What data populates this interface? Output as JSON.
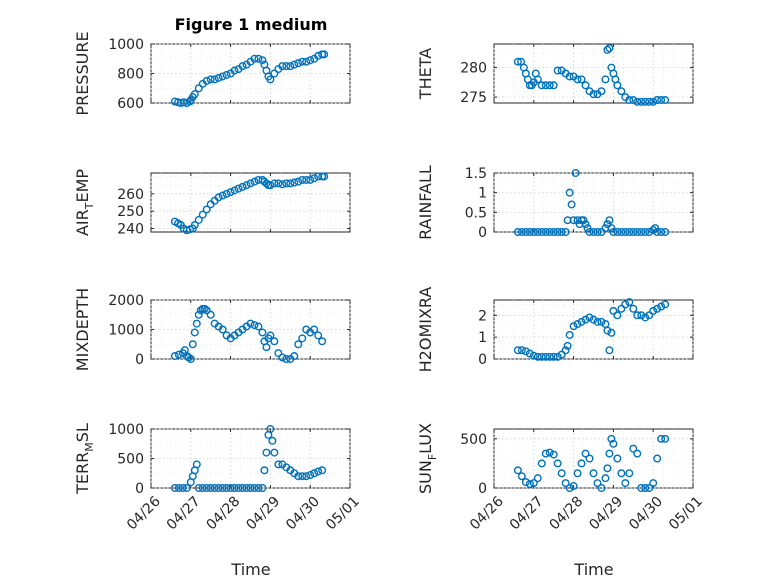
{
  "figure": {
    "title": "Figure 1 medium"
  },
  "colors": {
    "marker": "#0072BD",
    "axis": "#262626"
  },
  "chart_data": [
    {
      "type": "scatter",
      "ylabel": "PRESSURE",
      "ylabel_sub": "",
      "ylabel_tail": "",
      "xlim": [
        0,
        5
      ],
      "ylim": [
        600,
        1000
      ],
      "yticks": [
        600,
        800,
        1000
      ],
      "ytick_labels": [
        "600",
        "800",
        "1000"
      ],
      "x": [
        0.6,
        0.68,
        0.75,
        0.82,
        0.9,
        0.98,
        1.0,
        1.05,
        1.1,
        1.2,
        1.3,
        1.4,
        1.5,
        1.6,
        1.7,
        1.8,
        1.9,
        2.0,
        2.1,
        2.2,
        2.3,
        2.4,
        2.5,
        2.6,
        2.7,
        2.8,
        2.85,
        2.9,
        2.95,
        3.0,
        3.1,
        3.2,
        3.3,
        3.4,
        3.5,
        3.6,
        3.7,
        3.8,
        3.9,
        4.0,
        4.1,
        4.2,
        4.3,
        4.35
      ],
      "y": [
        610,
        605,
        600,
        605,
        600,
        610,
        620,
        640,
        660,
        700,
        730,
        750,
        760,
        760,
        770,
        780,
        790,
        800,
        820,
        830,
        850,
        860,
        880,
        900,
        900,
        890,
        860,
        820,
        780,
        760,
        800,
        830,
        850,
        850,
        850,
        860,
        870,
        880,
        880,
        890,
        900,
        920,
        930,
        930
      ]
    },
    {
      "type": "scatter",
      "ylabel": "THETA",
      "ylabel_sub": "",
      "ylabel_tail": "",
      "xlim": [
        0,
        5
      ],
      "ylim": [
        274,
        284
      ],
      "yticks": [
        275,
        280
      ],
      "ytick_labels": [
        "275",
        "280"
      ],
      "x": [
        0.6,
        0.68,
        0.75,
        0.8,
        0.85,
        0.9,
        0.95,
        1.0,
        1.05,
        1.1,
        1.2,
        1.3,
        1.4,
        1.5,
        1.6,
        1.7,
        1.8,
        1.9,
        2.0,
        2.1,
        2.2,
        2.3,
        2.4,
        2.5,
        2.6,
        2.7,
        2.8,
        2.85,
        2.9,
        2.95,
        3.0,
        3.05,
        3.1,
        3.2,
        3.3,
        3.4,
        3.5,
        3.6,
        3.7,
        3.8,
        3.9,
        4.0,
        4.1,
        4.2,
        4.3
      ],
      "y": [
        281,
        281,
        280,
        279,
        278,
        277,
        277,
        277.5,
        279,
        278,
        277,
        277,
        277,
        277,
        279.5,
        279.5,
        279,
        278.5,
        278.5,
        278,
        278,
        277,
        276,
        275.5,
        275.5,
        276,
        278,
        283,
        283.3,
        280,
        279,
        278,
        277,
        276,
        275,
        274.5,
        274.5,
        274.2,
        274.2,
        274.2,
        274.2,
        274.2,
        274.5,
        274.5,
        274.5
      ]
    },
    {
      "type": "scatter",
      "ylabel": "AIR",
      "ylabel_sub": "T",
      "ylabel_tail": "EMP",
      "xlim": [
        0,
        5
      ],
      "ylim": [
        238,
        272
      ],
      "yticks": [
        240,
        250,
        260
      ],
      "ytick_labels": [
        "240",
        "250",
        "260"
      ],
      "x": [
        0.6,
        0.68,
        0.75,
        0.82,
        0.9,
        0.98,
        1.05,
        1.1,
        1.2,
        1.3,
        1.4,
        1.5,
        1.6,
        1.7,
        1.8,
        1.9,
        2.0,
        2.1,
        2.2,
        2.3,
        2.4,
        2.5,
        2.6,
        2.7,
        2.8,
        2.85,
        2.9,
        2.95,
        3.0,
        3.1,
        3.2,
        3.3,
        3.4,
        3.5,
        3.6,
        3.7,
        3.8,
        3.9,
        4.0,
        4.1,
        4.2,
        4.3,
        4.35
      ],
      "y": [
        244,
        243,
        242,
        240,
        239,
        239.5,
        240,
        242,
        245,
        248,
        251,
        254,
        256,
        258,
        259,
        260,
        261,
        262,
        263,
        264,
        265,
        266,
        267,
        268,
        268,
        267,
        266,
        265,
        265,
        266,
        266,
        265.5,
        266,
        266,
        266.5,
        267,
        268,
        268,
        268,
        269,
        270,
        270,
        270
      ]
    },
    {
      "type": "scatter",
      "ylabel": "RAINFALL",
      "ylabel_sub": "",
      "ylabel_tail": "",
      "xlim": [
        0,
        5
      ],
      "ylim": [
        0,
        1.5
      ],
      "yticks": [
        0,
        0.5,
        1,
        1.5
      ],
      "ytick_labels": [
        "0",
        "0.5",
        "1",
        "1.5"
      ],
      "x": [
        0.6,
        0.7,
        0.8,
        0.9,
        1.0,
        1.1,
        1.2,
        1.3,
        1.4,
        1.5,
        1.6,
        1.7,
        1.8,
        1.85,
        1.9,
        1.95,
        2.0,
        2.05,
        2.1,
        2.15,
        2.2,
        2.25,
        2.3,
        2.35,
        2.4,
        2.5,
        2.6,
        2.7,
        2.8,
        2.85,
        2.9,
        2.95,
        3.0,
        3.1,
        3.2,
        3.3,
        3.4,
        3.5,
        3.6,
        3.7,
        3.8,
        3.9,
        4.0,
        4.05,
        4.1,
        4.2,
        4.3
      ],
      "y": [
        0,
        0,
        0,
        0,
        0,
        0,
        0,
        0,
        0,
        0,
        0,
        0,
        0,
        0.3,
        1.0,
        0.7,
        0.3,
        1.5,
        0.3,
        0.2,
        0.3,
        0.3,
        0.2,
        0.1,
        0,
        0,
        0,
        0,
        0.1,
        0.2,
        0.3,
        0.1,
        0,
        0,
        0,
        0,
        0,
        0,
        0,
        0,
        0,
        0,
        0.05,
        0.1,
        0,
        0,
        0
      ]
    },
    {
      "type": "scatter",
      "ylabel": "MIXDEPTH",
      "ylabel_sub": "",
      "ylabel_tail": "",
      "xlim": [
        0,
        5
      ],
      "ylim": [
        0,
        2000
      ],
      "yticks": [
        0,
        1000,
        2000
      ],
      "ytick_labels": [
        "0",
        "1000",
        "2000"
      ],
      "x": [
        0.6,
        0.7,
        0.8,
        0.85,
        0.9,
        0.95,
        1.0,
        1.05,
        1.1,
        1.15,
        1.2,
        1.25,
        1.3,
        1.35,
        1.4,
        1.5,
        1.6,
        1.7,
        1.8,
        1.9,
        2.0,
        2.1,
        2.2,
        2.3,
        2.4,
        2.5,
        2.6,
        2.7,
        2.8,
        2.85,
        2.9,
        2.95,
        3.0,
        3.1,
        3.2,
        3.3,
        3.4,
        3.5,
        3.6,
        3.7,
        3.8,
        3.9,
        4.0,
        4.1,
        4.2,
        4.3
      ],
      "y": [
        100,
        150,
        200,
        300,
        100,
        50,
        0,
        500,
        900,
        1200,
        1500,
        1650,
        1700,
        1700,
        1650,
        1500,
        1200,
        1100,
        1000,
        800,
        700,
        800,
        900,
        1000,
        1100,
        1200,
        1150,
        1100,
        900,
        600,
        400,
        700,
        800,
        600,
        200,
        50,
        0,
        0,
        100,
        500,
        700,
        1000,
        900,
        1000,
        800,
        600
      ]
    },
    {
      "type": "scatter",
      "ylabel": "H2OMIXRA",
      "ylabel_sub": "",
      "ylabel_tail": "",
      "xlim": [
        0,
        5
      ],
      "ylim": [
        0,
        2.7
      ],
      "yticks": [
        0,
        1,
        2
      ],
      "ytick_labels": [
        "0",
        "1",
        "2"
      ],
      "x": [
        0.6,
        0.7,
        0.8,
        0.9,
        1.0,
        1.1,
        1.2,
        1.3,
        1.4,
        1.5,
        1.6,
        1.7,
        1.8,
        1.85,
        1.9,
        2.0,
        2.1,
        2.2,
        2.3,
        2.4,
        2.5,
        2.6,
        2.7,
        2.8,
        2.85,
        2.9,
        2.95,
        3.0,
        3.1,
        3.2,
        3.3,
        3.4,
        3.5,
        3.6,
        3.7,
        3.8,
        3.9,
        4.0,
        4.1,
        4.2,
        4.3
      ],
      "y": [
        0.4,
        0.4,
        0.35,
        0.25,
        0.15,
        0.1,
        0.1,
        0.1,
        0.1,
        0.1,
        0.1,
        0.2,
        0.4,
        0.6,
        1.1,
        1.5,
        1.6,
        1.7,
        1.8,
        1.9,
        1.8,
        1.7,
        1.7,
        1.6,
        1.3,
        0.4,
        1.2,
        2.2,
        2.0,
        2.3,
        2.5,
        2.6,
        2.3,
        2.0,
        2.0,
        1.9,
        2.0,
        2.2,
        2.3,
        2.4,
        2.5
      ]
    },
    {
      "type": "scatter",
      "ylabel": "TERR",
      "ylabel_sub": "M",
      "ylabel_tail": "SL",
      "xlim": [
        0,
        5
      ],
      "ylim": [
        0,
        1000
      ],
      "yticks": [
        0,
        500,
        1000
      ],
      "ytick_labels": [
        "0",
        "500",
        "1000"
      ],
      "x": [
        0.6,
        0.7,
        0.8,
        0.9,
        1.0,
        1.05,
        1.1,
        1.15,
        1.2,
        1.3,
        1.4,
        1.5,
        1.6,
        1.7,
        1.8,
        1.9,
        2.0,
        2.1,
        2.2,
        2.3,
        2.4,
        2.5,
        2.6,
        2.7,
        2.8,
        2.85,
        2.9,
        2.95,
        3.0,
        3.05,
        3.1,
        3.2,
        3.3,
        3.4,
        3.5,
        3.6,
        3.7,
        3.8,
        3.9,
        4.0,
        4.1,
        4.2,
        4.3
      ],
      "y": [
        0,
        0,
        0,
        0,
        100,
        200,
        300,
        400,
        0,
        0,
        0,
        0,
        0,
        0,
        0,
        0,
        0,
        0,
        0,
        0,
        0,
        0,
        0,
        0,
        0,
        300,
        600,
        900,
        1000,
        800,
        600,
        400,
        400,
        350,
        300,
        250,
        200,
        200,
        200,
        220,
        250,
        280,
        300
      ]
    },
    {
      "type": "scatter",
      "ylabel": "SUN",
      "ylabel_sub": "F",
      "ylabel_tail": "LUX",
      "xlim": [
        0,
        5
      ],
      "ylim": [
        0,
        600
      ],
      "yticks": [
        0,
        500
      ],
      "ytick_labels": [
        "0",
        "500"
      ],
      "x": [
        0.6,
        0.7,
        0.8,
        0.9,
        1.0,
        1.1,
        1.2,
        1.3,
        1.4,
        1.5,
        1.6,
        1.7,
        1.8,
        1.9,
        2.0,
        2.1,
        2.2,
        2.3,
        2.4,
        2.5,
        2.6,
        2.7,
        2.8,
        2.85,
        2.9,
        2.95,
        3.0,
        3.1,
        3.2,
        3.3,
        3.4,
        3.5,
        3.6,
        3.7,
        3.8,
        3.9,
        4.0,
        4.1,
        4.2,
        4.3
      ],
      "y": [
        180,
        120,
        60,
        40,
        50,
        100,
        250,
        350,
        360,
        340,
        250,
        150,
        50,
        0,
        20,
        150,
        250,
        350,
        300,
        150,
        50,
        0,
        100,
        200,
        350,
        500,
        450,
        300,
        150,
        50,
        150,
        400,
        350,
        0,
        0,
        0,
        50,
        300,
        500,
        500
      ]
    }
  ],
  "xaxis": {
    "label": "Time",
    "ticks": [
      0,
      1,
      2,
      3,
      4,
      5
    ],
    "tick_labels": [
      "04/26",
      "04/27",
      "04/28",
      "04/29",
      "04/30",
      "05/01"
    ]
  }
}
